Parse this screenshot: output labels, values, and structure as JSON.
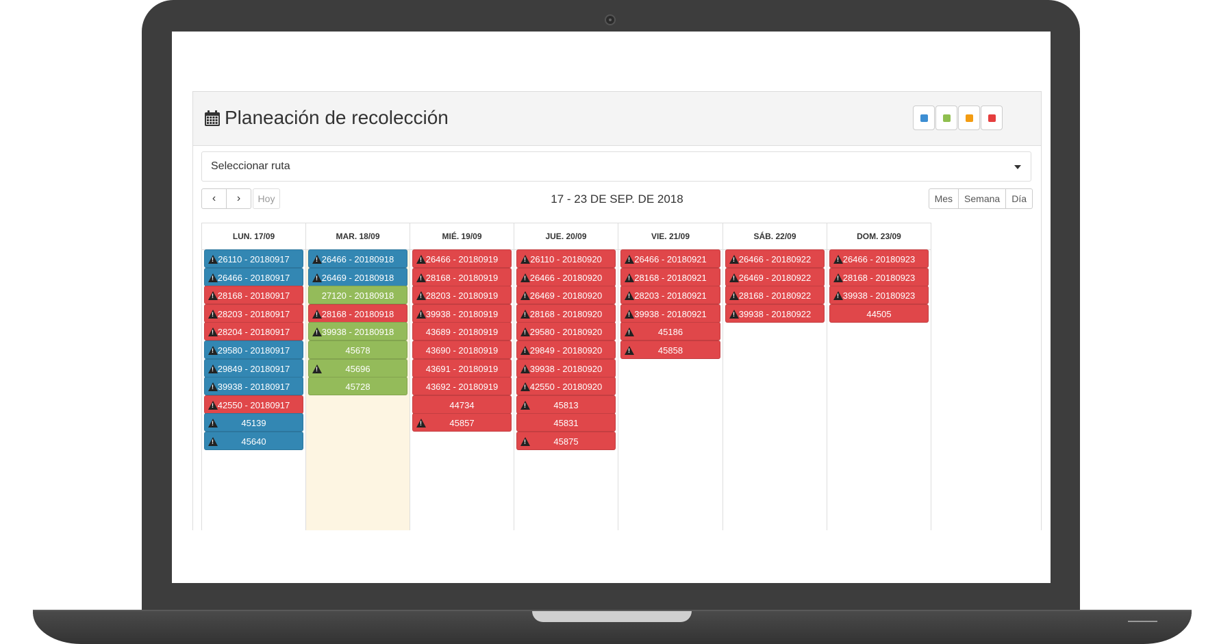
{
  "app": {
    "title": "Planeación de recolección",
    "legend_colors": [
      {
        "name": "blue",
        "color": "#3d8ed3"
      },
      {
        "name": "green",
        "color": "#8fbf4f"
      },
      {
        "name": "orange",
        "color": "#f39c12"
      },
      {
        "name": "red",
        "color": "#e53e3e"
      }
    ]
  },
  "route_select": {
    "value": "Seleccionar ruta"
  },
  "toolbar": {
    "prev": "‹",
    "next": "›",
    "today": "Hoy",
    "range": "17 - 23 DE SEP. DE 2018",
    "views": [
      "Mes",
      "Semana",
      "Día"
    ]
  },
  "days": [
    {
      "label": "LUN. 17/09",
      "today": false,
      "events": [
        {
          "text": "26110 - 20180917",
          "color": "blue",
          "warn": true
        },
        {
          "text": "26466 - 20180917",
          "color": "blue",
          "warn": true
        },
        {
          "text": "28168 - 20180917",
          "color": "red",
          "warn": true
        },
        {
          "text": "28203 - 20180917",
          "color": "red",
          "warn": true
        },
        {
          "text": "28204 - 20180917",
          "color": "red",
          "warn": true
        },
        {
          "text": "29580 - 20180917",
          "color": "blue",
          "warn": true
        },
        {
          "text": "29849 - 20180917",
          "color": "blue",
          "warn": true
        },
        {
          "text": "39938 - 20180917",
          "color": "blue",
          "warn": true
        },
        {
          "text": "42550 - 20180917",
          "color": "red",
          "warn": true
        },
        {
          "text": "45139",
          "color": "blue",
          "warn": true
        },
        {
          "text": "45640",
          "color": "blue",
          "warn": true
        }
      ]
    },
    {
      "label": "MAR. 18/09",
      "today": true,
      "events": [
        {
          "text": "26466 - 20180918",
          "color": "blue",
          "warn": true
        },
        {
          "text": "26469 - 20180918",
          "color": "blue",
          "warn": true
        },
        {
          "text": "27120 - 20180918",
          "color": "green",
          "warn": false
        },
        {
          "text": "28168 - 20180918",
          "color": "red",
          "warn": true
        },
        {
          "text": "39938 - 20180918",
          "color": "green",
          "warn": true
        },
        {
          "text": "45678",
          "color": "green",
          "warn": false
        },
        {
          "text": "45696",
          "color": "green",
          "warn": true
        },
        {
          "text": "45728",
          "color": "green",
          "warn": false
        }
      ]
    },
    {
      "label": "MIÉ. 19/09",
      "today": false,
      "events": [
        {
          "text": "26466 - 20180919",
          "color": "red",
          "warn": true
        },
        {
          "text": "28168 - 20180919",
          "color": "red",
          "warn": true
        },
        {
          "text": "28203 - 20180919",
          "color": "red",
          "warn": true
        },
        {
          "text": "39938 - 20180919",
          "color": "red",
          "warn": true
        },
        {
          "text": "43689 - 20180919",
          "color": "red",
          "warn": false
        },
        {
          "text": "43690 - 20180919",
          "color": "red",
          "warn": false
        },
        {
          "text": "43691 - 20180919",
          "color": "red",
          "warn": false
        },
        {
          "text": "43692 - 20180919",
          "color": "red",
          "warn": false
        },
        {
          "text": "44734",
          "color": "red",
          "warn": false
        },
        {
          "text": "45857",
          "color": "red",
          "warn": true
        }
      ]
    },
    {
      "label": "JUE. 20/09",
      "today": false,
      "events": [
        {
          "text": "26110 - 20180920",
          "color": "red",
          "warn": true
        },
        {
          "text": "26466 - 20180920",
          "color": "red",
          "warn": true
        },
        {
          "text": "26469 - 20180920",
          "color": "red",
          "warn": true
        },
        {
          "text": "28168 - 20180920",
          "color": "red",
          "warn": true
        },
        {
          "text": "29580 - 20180920",
          "color": "red",
          "warn": true
        },
        {
          "text": "29849 - 20180920",
          "color": "red",
          "warn": true
        },
        {
          "text": "39938 - 20180920",
          "color": "red",
          "warn": true
        },
        {
          "text": "42550 - 20180920",
          "color": "red",
          "warn": true
        },
        {
          "text": "45813",
          "color": "red",
          "warn": true
        },
        {
          "text": "45831",
          "color": "red",
          "warn": false
        },
        {
          "text": "45875",
          "color": "red",
          "warn": true
        }
      ]
    },
    {
      "label": "VIE. 21/09",
      "today": false,
      "events": [
        {
          "text": "26466 - 20180921",
          "color": "red",
          "warn": true
        },
        {
          "text": "28168 - 20180921",
          "color": "red",
          "warn": true
        },
        {
          "text": "28203 - 20180921",
          "color": "red",
          "warn": true
        },
        {
          "text": "39938 - 20180921",
          "color": "red",
          "warn": true
        },
        {
          "text": "45186",
          "color": "red",
          "warn": true
        },
        {
          "text": "45858",
          "color": "red",
          "warn": true
        }
      ]
    },
    {
      "label": "SÁB. 22/09",
      "today": false,
      "events": [
        {
          "text": "26466 - 20180922",
          "color": "red",
          "warn": true
        },
        {
          "text": "26469 - 20180922",
          "color": "red",
          "warn": true
        },
        {
          "text": "28168 - 20180922",
          "color": "red",
          "warn": true
        },
        {
          "text": "39938 - 20180922",
          "color": "red",
          "warn": true
        }
      ]
    },
    {
      "label": "DOM. 23/09",
      "today": false,
      "events": [
        {
          "text": "26466 - 20180923",
          "color": "red",
          "warn": true
        },
        {
          "text": "28168 - 20180923",
          "color": "red",
          "warn": true
        },
        {
          "text": "39938 - 20180923",
          "color": "red",
          "warn": true
        },
        {
          "text": "44505",
          "color": "red",
          "warn": false
        }
      ]
    }
  ]
}
